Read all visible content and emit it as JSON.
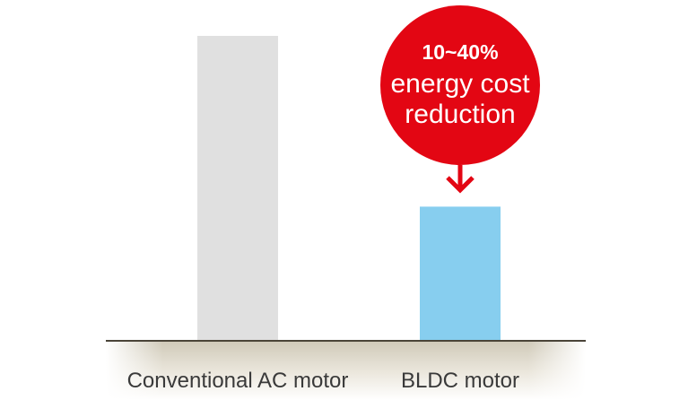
{
  "chart_data": {
    "type": "bar",
    "categories": [
      "Conventional AC motor",
      "BLDC motor"
    ],
    "values": [
      100,
      44
    ],
    "ylim": [
      0,
      100
    ],
    "grid": false,
    "bar_colors": [
      "#e0e0e0",
      "#87ceef"
    ],
    "callout": {
      "line1": "10~40%",
      "line2": "energy cost",
      "line3": "reduction",
      "color": "#e30613",
      "target_category": "BLDC motor"
    },
    "baseline_color": "#4a4438"
  }
}
